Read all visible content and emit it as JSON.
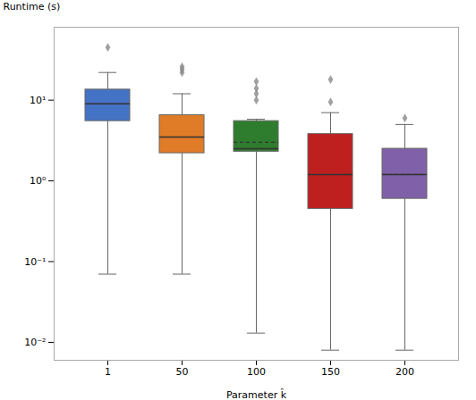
{
  "chart_data": {
    "type": "box",
    "xlabel": "Parameter k̂",
    "ylabel": "Runtime (s)",
    "categories": [
      "1",
      "50",
      "100",
      "150",
      "200"
    ],
    "colors": [
      "#4472c4",
      "#e07b27",
      "#2e7d2e",
      "#be2020",
      "#8060a8"
    ],
    "q1": [
      5.5,
      2.2,
      2.3,
      0.45,
      0.6
    ],
    "median": [
      9.0,
      3.5,
      3.0,
      1.2,
      1.2
    ],
    "q3": [
      13.5,
      6.5,
      5.5,
      3.8,
      2.5
    ],
    "whislo": [
      0.07,
      0.07,
      0.013,
      0.008,
      0.008
    ],
    "whishi": [
      22.0,
      12.0,
      5.8,
      7.0,
      5.0
    ],
    "fliers": [
      [
        45.0
      ],
      [
        22.0,
        24.0,
        26.0
      ],
      [
        10.0,
        12.0,
        14.0,
        17.0
      ],
      [
        18.0,
        9.5
      ],
      [
        6.0
      ]
    ],
    "mean": [
      null,
      null,
      2.5,
      null,
      1.2
    ],
    "log": "y",
    "ylim": [
      0.006,
      80
    ],
    "yticks": [
      {
        "value": 0.01,
        "label": "10⁻²"
      },
      {
        "value": 0.1,
        "label": "10⁻¹"
      },
      {
        "value": 1,
        "label": "10⁰"
      },
      {
        "value": 10,
        "label": "10¹"
      }
    ],
    "grid": false
  }
}
